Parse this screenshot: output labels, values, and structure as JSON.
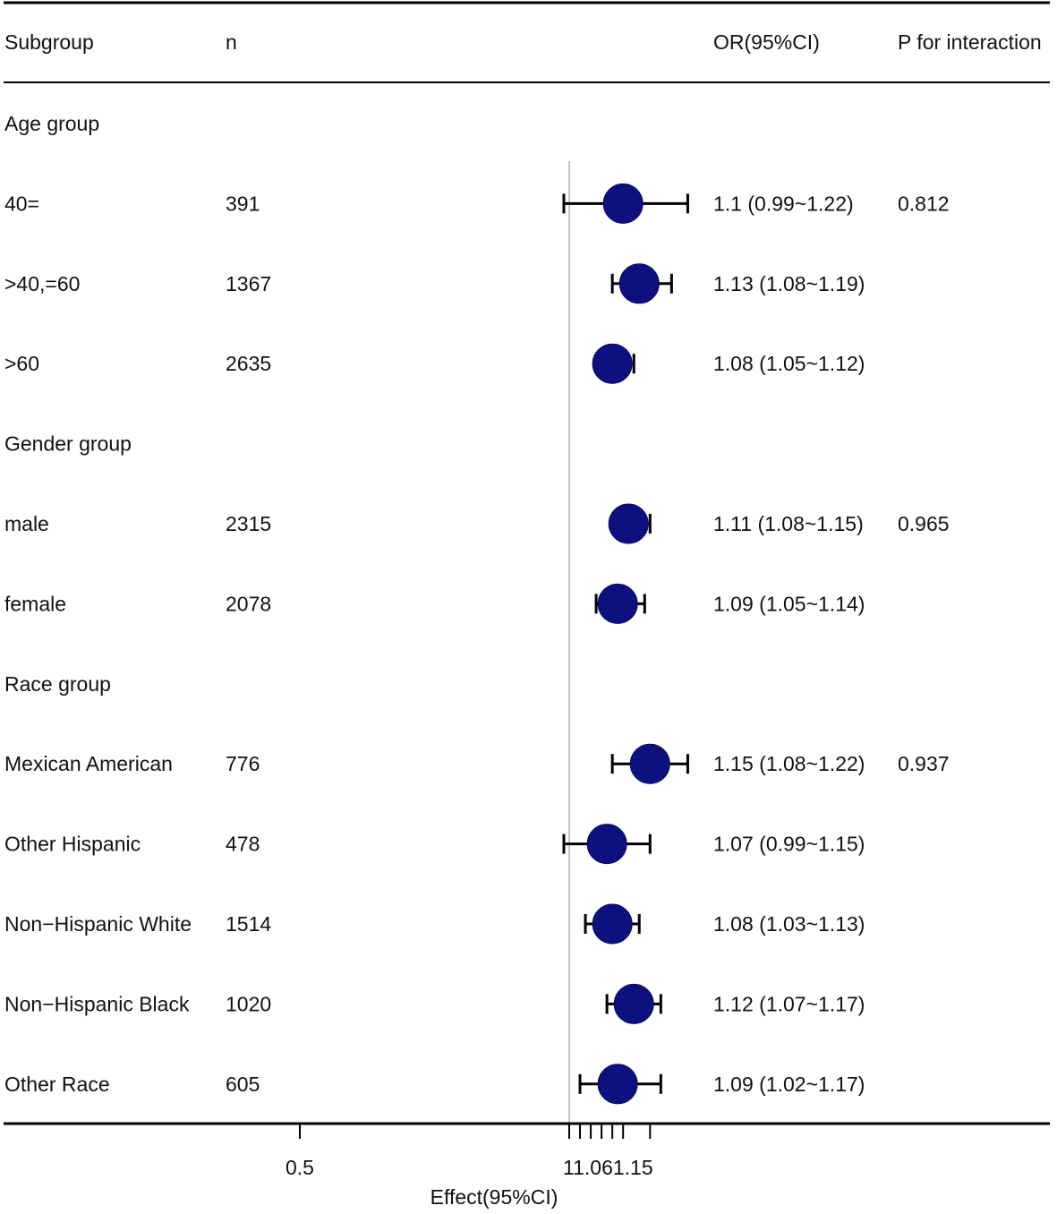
{
  "header": {
    "subgroup": "Subgroup",
    "n": "n",
    "or_ci": "OR(95%CI)",
    "p_interaction": "P for interaction"
  },
  "colors": {
    "marker": "#0d1180",
    "line": "#000000",
    "reference_line": "#b0b0b0"
  },
  "chart_data": {
    "type": "forest",
    "xlabel": "Effect(95%CI)",
    "reference_value": 1,
    "x_ticks": [
      {
        "value": 0.5,
        "label": "0.5"
      },
      {
        "value": 1,
        "label": "1"
      },
      {
        "value": 1.06,
        "label": "1.06"
      },
      {
        "value": 1.15,
        "label": "1.15"
      }
    ],
    "minor_ticks": [
      1,
      1.02,
      1.04,
      1.06,
      1.08,
      1.1,
      1.15
    ],
    "rows": [
      {
        "kind": "group",
        "label": "Age group"
      },
      {
        "kind": "item",
        "label": "40=",
        "n": "391",
        "or": 1.1,
        "lo": 0.99,
        "hi": 1.22,
        "text": "1.1 (0.99~1.22)",
        "p": "0.812"
      },
      {
        "kind": "item",
        "label": ">40,=60",
        "n": "1367",
        "or": 1.13,
        "lo": 1.08,
        "hi": 1.19,
        "text": "1.13 (1.08~1.19)",
        "p": ""
      },
      {
        "kind": "item",
        "label": ">60",
        "n": "2635",
        "or": 1.08,
        "lo": 1.05,
        "hi": 1.12,
        "text": "1.08 (1.05~1.12)",
        "p": ""
      },
      {
        "kind": "group",
        "label": "Gender group"
      },
      {
        "kind": "item",
        "label": "male",
        "n": "2315",
        "or": 1.11,
        "lo": 1.08,
        "hi": 1.15,
        "text": "1.11 (1.08~1.15)",
        "p": "0.965"
      },
      {
        "kind": "item",
        "label": "female",
        "n": "2078",
        "or": 1.09,
        "lo": 1.05,
        "hi": 1.14,
        "text": "1.09 (1.05~1.14)",
        "p": ""
      },
      {
        "kind": "group",
        "label": "Race group"
      },
      {
        "kind": "item",
        "label": "Mexican American",
        "n": "776",
        "or": 1.15,
        "lo": 1.08,
        "hi": 1.22,
        "text": "1.15 (1.08~1.22)",
        "p": "0.937"
      },
      {
        "kind": "item",
        "label": "Other Hispanic",
        "n": "478",
        "or": 1.07,
        "lo": 0.99,
        "hi": 1.15,
        "text": "1.07 (0.99~1.15)",
        "p": ""
      },
      {
        "kind": "item",
        "label": "Non−Hispanic White",
        "n": "1514",
        "or": 1.08,
        "lo": 1.03,
        "hi": 1.13,
        "text": "1.08 (1.03~1.13)",
        "p": ""
      },
      {
        "kind": "item",
        "label": "Non−Hispanic Black",
        "n": "1020",
        "or": 1.12,
        "lo": 1.07,
        "hi": 1.17,
        "text": "1.12 (1.07~1.17)",
        "p": ""
      },
      {
        "kind": "item",
        "label": "Other Race",
        "n": "605",
        "or": 1.09,
        "lo": 1.02,
        "hi": 1.17,
        "text": "1.09 (1.02~1.17)",
        "p": ""
      }
    ]
  }
}
